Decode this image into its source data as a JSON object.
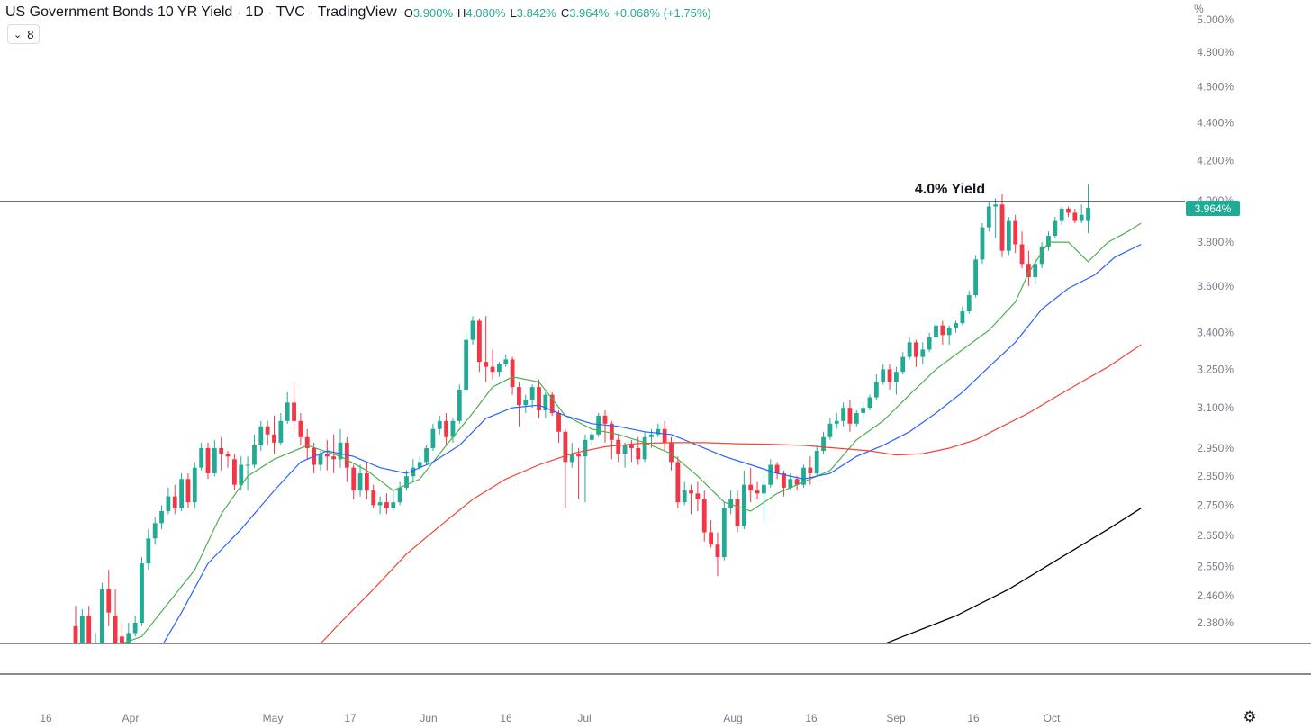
{
  "header": {
    "title": "US Government Bonds 10 YR Yield",
    "interval": "1D",
    "source": "TVC",
    "platform": "TradingView",
    "ohlc": {
      "o_label": "O",
      "o_value": "3.900%",
      "h_label": "H",
      "h_value": "4.080%",
      "l_label": "L",
      "l_value": "3.842%",
      "c_label": "C",
      "c_value": "3.964%",
      "change": "+0.068% (+1.75%)"
    },
    "indicator_count": "8"
  },
  "colors": {
    "up": "#22ab94",
    "down": "#f23645",
    "ma_green": "#4caf50",
    "ma_blue": "#2962ff",
    "ma_red": "#f44336",
    "ma_black": "#000000",
    "price_tag": "#22ab94"
  },
  "chart_data": {
    "type": "candlestick",
    "title": "US Government Bonds 10 YR Yield",
    "y_unit": "%",
    "y_scale": "log",
    "ylim": [
      2.26,
      5.0
    ],
    "y_ticks": [
      "5.000%",
      "4.800%",
      "4.600%",
      "4.400%",
      "4.200%",
      "4.000%",
      "3.800%",
      "3.600%",
      "3.400%",
      "3.250%",
      "3.100%",
      "2.950%",
      "2.850%",
      "2.750%",
      "2.650%",
      "2.550%",
      "2.460%",
      "2.380%"
    ],
    "x_ticks": [
      "16",
      "Apr",
      "May",
      "17",
      "Jun",
      "16",
      "Jul",
      "Aug",
      "16",
      "Sep",
      "16",
      "Oct"
    ],
    "annotation": {
      "text": "4.0% Yield",
      "level": 4.0
    },
    "last_price": {
      "label": "3.964%",
      "value": 3.964
    },
    "candles": [
      [
        2.37,
        2.43,
        2.3,
        2.3
      ],
      [
        2.31,
        2.42,
        2.29,
        2.4
      ],
      [
        2.4,
        2.43,
        2.27,
        2.28
      ],
      [
        2.28,
        2.35,
        2.27,
        2.31
      ],
      [
        2.31,
        2.5,
        2.3,
        2.48
      ],
      [
        2.48,
        2.54,
        2.37,
        2.41
      ],
      [
        2.4,
        2.48,
        2.3,
        2.32
      ],
      [
        2.34,
        2.38,
        2.28,
        2.3
      ],
      [
        2.3,
        2.38,
        2.26,
        2.35
      ],
      [
        2.35,
        2.4,
        2.34,
        2.38
      ],
      [
        2.38,
        2.58,
        2.37,
        2.56
      ],
      [
        2.56,
        2.67,
        2.54,
        2.64
      ],
      [
        2.64,
        2.71,
        2.62,
        2.69
      ],
      [
        2.69,
        2.75,
        2.67,
        2.73
      ],
      [
        2.73,
        2.81,
        2.72,
        2.78
      ],
      [
        2.78,
        2.82,
        2.72,
        2.74
      ],
      [
        2.74,
        2.86,
        2.73,
        2.84
      ],
      [
        2.84,
        2.86,
        2.74,
        2.76
      ],
      [
        2.76,
        2.9,
        2.74,
        2.88
      ],
      [
        2.88,
        2.97,
        2.87,
        2.95
      ],
      [
        2.95,
        2.97,
        2.84,
        2.86
      ],
      [
        2.86,
        2.98,
        2.85,
        2.95
      ],
      [
        2.95,
        2.99,
        2.87,
        2.93
      ],
      [
        2.93,
        2.94,
        2.88,
        2.92
      ],
      [
        2.91,
        2.93,
        2.8,
        2.82
      ],
      [
        2.82,
        2.92,
        2.8,
        2.89
      ],
      [
        2.89,
        2.92,
        2.8,
        2.89
      ],
      [
        2.89,
        3.0,
        2.88,
        2.96
      ],
      [
        2.96,
        3.05,
        2.94,
        3.03
      ],
      [
        3.03,
        3.05,
        2.96,
        3.0
      ],
      [
        3.0,
        3.07,
        2.93,
        2.97
      ],
      [
        2.97,
        3.08,
        2.96,
        3.05
      ],
      [
        3.05,
        3.16,
        3.04,
        3.12
      ],
      [
        3.12,
        3.2,
        3.02,
        3.05
      ],
      [
        3.05,
        3.08,
        2.96,
        2.99
      ],
      [
        2.99,
        3.02,
        2.91,
        2.95
      ],
      [
        2.95,
        2.97,
        2.86,
        2.89
      ],
      [
        2.89,
        2.94,
        2.87,
        2.93
      ],
      [
        2.93,
        2.98,
        2.87,
        2.92
      ],
      [
        2.92,
        3.0,
        2.86,
        2.91
      ],
      [
        2.91,
        3.02,
        2.88,
        2.97
      ],
      [
        2.97,
        2.99,
        2.83,
        2.88
      ],
      [
        2.88,
        2.89,
        2.77,
        2.8
      ],
      [
        2.8,
        2.89,
        2.78,
        2.86
      ],
      [
        2.86,
        2.9,
        2.77,
        2.8
      ],
      [
        2.8,
        2.82,
        2.74,
        2.75
      ],
      [
        2.75,
        2.78,
        2.72,
        2.76
      ],
      [
        2.76,
        2.79,
        2.72,
        2.74
      ],
      [
        2.74,
        2.8,
        2.73,
        2.76
      ],
      [
        2.76,
        2.83,
        2.75,
        2.81
      ],
      [
        2.81,
        2.87,
        2.8,
        2.85
      ],
      [
        2.85,
        2.91,
        2.83,
        2.88
      ],
      [
        2.88,
        2.92,
        2.87,
        2.9
      ],
      [
        2.9,
        2.96,
        2.89,
        2.95
      ],
      [
        2.95,
        3.04,
        2.94,
        3.02
      ],
      [
        3.02,
        3.07,
        3.0,
        3.05
      ],
      [
        3.05,
        3.08,
        2.96,
        2.99
      ],
      [
        2.99,
        3.06,
        2.97,
        3.05
      ],
      [
        3.05,
        3.19,
        3.04,
        3.17
      ],
      [
        3.17,
        3.4,
        3.16,
        3.37
      ],
      [
        3.37,
        3.47,
        3.35,
        3.45
      ],
      [
        3.45,
        3.46,
        3.24,
        3.28
      ],
      [
        3.28,
        3.47,
        3.2,
        3.26
      ],
      [
        3.26,
        3.33,
        3.21,
        3.24
      ],
      [
        3.24,
        3.28,
        3.22,
        3.27
      ],
      [
        3.27,
        3.31,
        3.26,
        3.29
      ],
      [
        3.29,
        3.3,
        3.15,
        3.18
      ],
      [
        3.18,
        3.2,
        3.03,
        3.11
      ],
      [
        3.11,
        3.15,
        3.08,
        3.13
      ],
      [
        3.13,
        3.19,
        3.1,
        3.18
      ],
      [
        3.18,
        3.21,
        3.06,
        3.09
      ],
      [
        3.09,
        3.16,
        3.06,
        3.15
      ],
      [
        3.15,
        3.16,
        3.07,
        3.08
      ],
      [
        3.08,
        3.09,
        2.97,
        3.01
      ],
      [
        3.01,
        3.02,
        2.74,
        2.9
      ],
      [
        2.9,
        2.97,
        2.88,
        2.93
      ],
      [
        2.93,
        2.95,
        2.77,
        2.92
      ],
      [
        2.92,
        3.0,
        2.76,
        2.98
      ],
      [
        2.98,
        3.01,
        2.96,
        3.0
      ],
      [
        3.0,
        3.08,
        2.99,
        3.07
      ],
      [
        3.07,
        3.09,
        2.97,
        3.04
      ],
      [
        3.04,
        3.05,
        2.91,
        2.98
      ],
      [
        2.98,
        3.0,
        2.9,
        2.93
      ],
      [
        2.93,
        2.97,
        2.88,
        2.96
      ],
      [
        2.96,
        2.98,
        2.9,
        2.95
      ],
      [
        2.95,
        2.99,
        2.89,
        2.91
      ],
      [
        2.91,
        3.01,
        2.9,
        2.99
      ],
      [
        2.99,
        3.02,
        2.95,
        3.0
      ],
      [
        3.0,
        3.04,
        2.99,
        3.02
      ],
      [
        3.02,
        3.05,
        2.94,
        2.97
      ],
      [
        2.97,
        2.99,
        2.87,
        2.9
      ],
      [
        2.9,
        2.92,
        2.74,
        2.76
      ],
      [
        2.76,
        2.83,
        2.75,
        2.8
      ],
      [
        2.8,
        2.82,
        2.72,
        2.79
      ],
      [
        2.79,
        2.83,
        2.73,
        2.77
      ],
      [
        2.77,
        2.8,
        2.63,
        2.66
      ],
      [
        2.66,
        2.7,
        2.61,
        2.62
      ],
      [
        2.62,
        2.66,
        2.52,
        2.58
      ],
      [
        2.58,
        2.76,
        2.57,
        2.74
      ],
      [
        2.74,
        2.8,
        2.72,
        2.77
      ],
      [
        2.77,
        2.8,
        2.66,
        2.68
      ],
      [
        2.68,
        2.87,
        2.67,
        2.82
      ],
      [
        2.82,
        2.88,
        2.76,
        2.8
      ],
      [
        2.8,
        2.83,
        2.77,
        2.79
      ],
      [
        2.79,
        2.86,
        2.69,
        2.82
      ],
      [
        2.82,
        2.91,
        2.81,
        2.89
      ],
      [
        2.89,
        2.9,
        2.84,
        2.86
      ],
      [
        2.86,
        2.87,
        2.78,
        2.81
      ],
      [
        2.81,
        2.86,
        2.8,
        2.84
      ],
      [
        2.84,
        2.85,
        2.8,
        2.82
      ],
      [
        2.82,
        2.89,
        2.81,
        2.88
      ],
      [
        2.88,
        2.92,
        2.82,
        2.86
      ],
      [
        2.86,
        2.96,
        2.85,
        2.94
      ],
      [
        2.94,
        3.01,
        2.93,
        2.99
      ],
      [
        2.99,
        3.06,
        2.98,
        3.04
      ],
      [
        3.04,
        3.08,
        3.02,
        3.05
      ],
      [
        3.05,
        3.12,
        3.03,
        3.1
      ],
      [
        3.1,
        3.13,
        3.01,
        3.04
      ],
      [
        3.04,
        3.09,
        3.03,
        3.08
      ],
      [
        3.08,
        3.12,
        3.06,
        3.1
      ],
      [
        3.1,
        3.15,
        3.09,
        3.14
      ],
      [
        3.14,
        3.23,
        3.13,
        3.2
      ],
      [
        3.2,
        3.27,
        3.19,
        3.25
      ],
      [
        3.25,
        3.27,
        3.17,
        3.2
      ],
      [
        3.2,
        3.26,
        3.15,
        3.24
      ],
      [
        3.24,
        3.32,
        3.23,
        3.3
      ],
      [
        3.3,
        3.38,
        3.29,
        3.36
      ],
      [
        3.36,
        3.37,
        3.26,
        3.3
      ],
      [
        3.3,
        3.36,
        3.27,
        3.33
      ],
      [
        3.33,
        3.4,
        3.32,
        3.38
      ],
      [
        3.38,
        3.46,
        3.37,
        3.43
      ],
      [
        3.43,
        3.45,
        3.35,
        3.39
      ],
      [
        3.39,
        3.43,
        3.35,
        3.42
      ],
      [
        3.42,
        3.45,
        3.4,
        3.44
      ],
      [
        3.44,
        3.51,
        3.43,
        3.49
      ],
      [
        3.49,
        3.58,
        3.48,
        3.56
      ],
      [
        3.56,
        3.74,
        3.55,
        3.72
      ],
      [
        3.72,
        3.89,
        3.7,
        3.87
      ],
      [
        3.87,
        3.99,
        3.85,
        3.97
      ],
      [
        3.97,
        4.01,
        3.82,
        3.98
      ],
      [
        3.98,
        4.03,
        3.73,
        3.76
      ],
      [
        3.76,
        3.92,
        3.74,
        3.9
      ],
      [
        3.9,
        3.93,
        3.75,
        3.79
      ],
      [
        3.79,
        3.85,
        3.68,
        3.7
      ],
      [
        3.7,
        3.76,
        3.6,
        3.64
      ],
      [
        3.64,
        3.73,
        3.61,
        3.7
      ],
      [
        3.7,
        3.8,
        3.68,
        3.78
      ],
      [
        3.78,
        3.85,
        3.76,
        3.83
      ],
      [
        3.83,
        3.92,
        3.82,
        3.9
      ],
      [
        3.9,
        3.97,
        3.88,
        3.96
      ],
      [
        3.96,
        3.97,
        3.92,
        3.94
      ],
      [
        3.94,
        3.96,
        3.89,
        3.9
      ],
      [
        3.9,
        3.98,
        3.89,
        3.93
      ],
      [
        3.9,
        4.08,
        3.842,
        3.964
      ]
    ],
    "series": [
      {
        "type": "moving-average",
        "color": "#4caf50",
        "points": [
          [
            1,
            2.28
          ],
          [
            10,
            2.34
          ],
          [
            18,
            2.54
          ],
          [
            22,
            2.72
          ],
          [
            26,
            2.85
          ],
          [
            30,
            2.91
          ],
          [
            35,
            2.96
          ],
          [
            40,
            2.92
          ],
          [
            44,
            2.87
          ],
          [
            48,
            2.8
          ],
          [
            52,
            2.84
          ],
          [
            56,
            2.96
          ],
          [
            60,
            3.08
          ],
          [
            63,
            3.18
          ],
          [
            66,
            3.22
          ],
          [
            70,
            3.2
          ],
          [
            74,
            3.07
          ],
          [
            78,
            3.02
          ],
          [
            82,
            3.0
          ],
          [
            86,
            2.97
          ],
          [
            90,
            2.93
          ],
          [
            94,
            2.85
          ],
          [
            98,
            2.76
          ],
          [
            102,
            2.73
          ],
          [
            106,
            2.79
          ],
          [
            110,
            2.83
          ],
          [
            114,
            2.87
          ],
          [
            118,
            2.98
          ],
          [
            122,
            3.05
          ],
          [
            126,
            3.15
          ],
          [
            130,
            3.25
          ],
          [
            134,
            3.33
          ],
          [
            138,
            3.41
          ],
          [
            142,
            3.53
          ],
          [
            144,
            3.66
          ],
          [
            147,
            3.8
          ],
          [
            150,
            3.8
          ],
          [
            153,
            3.71
          ],
          [
            156,
            3.8
          ],
          [
            159,
            3.85
          ],
          [
            161,
            3.89
          ]
        ]
      },
      {
        "type": "moving-average",
        "color": "#2962ff",
        "points": [
          [
            12,
            2.28
          ],
          [
            16,
            2.41
          ],
          [
            20,
            2.56
          ],
          [
            25,
            2.67
          ],
          [
            30,
            2.8
          ],
          [
            34,
            2.9
          ],
          [
            38,
            2.94
          ],
          [
            42,
            2.92
          ],
          [
            46,
            2.88
          ],
          [
            50,
            2.86
          ],
          [
            54,
            2.9
          ],
          [
            58,
            2.96
          ],
          [
            62,
            3.06
          ],
          [
            66,
            3.1
          ],
          [
            70,
            3.11
          ],
          [
            74,
            3.07
          ],
          [
            78,
            3.04
          ],
          [
            82,
            3.03
          ],
          [
            86,
            3.01
          ],
          [
            90,
            3.0
          ],
          [
            94,
            2.96
          ],
          [
            98,
            2.92
          ],
          [
            102,
            2.89
          ],
          [
            106,
            2.86
          ],
          [
            110,
            2.84
          ],
          [
            114,
            2.86
          ],
          [
            118,
            2.92
          ],
          [
            122,
            2.96
          ],
          [
            126,
            3.01
          ],
          [
            130,
            3.08
          ],
          [
            134,
            3.16
          ],
          [
            138,
            3.26
          ],
          [
            142,
            3.36
          ],
          [
            146,
            3.5
          ],
          [
            150,
            3.59
          ],
          [
            154,
            3.65
          ],
          [
            157,
            3.73
          ],
          [
            161,
            3.79
          ]
        ]
      },
      {
        "type": "moving-average",
        "color": "#f44336",
        "points": [
          [
            35,
            2.28
          ],
          [
            40,
            2.38
          ],
          [
            45,
            2.48
          ],
          [
            50,
            2.59
          ],
          [
            55,
            2.68
          ],
          [
            60,
            2.77
          ],
          [
            65,
            2.84
          ],
          [
            70,
            2.89
          ],
          [
            75,
            2.93
          ],
          [
            80,
            2.955
          ],
          [
            85,
            2.967
          ],
          [
            90,
            2.97
          ],
          [
            95,
            2.97
          ],
          [
            100,
            2.966
          ],
          [
            105,
            2.964
          ],
          [
            110,
            2.96
          ],
          [
            115,
            2.95
          ],
          [
            120,
            2.94
          ],
          [
            124,
            2.925
          ],
          [
            128,
            2.93
          ],
          [
            132,
            2.95
          ],
          [
            136,
            2.98
          ],
          [
            140,
            3.03
          ],
          [
            144,
            3.08
          ],
          [
            148,
            3.14
          ],
          [
            152,
            3.2
          ],
          [
            156,
            3.26
          ],
          [
            161,
            3.35
          ]
        ]
      },
      {
        "type": "moving-average",
        "color": "#000000",
        "points": [
          [
            117,
            2.28
          ],
          [
            125,
            2.34
          ],
          [
            133,
            2.4
          ],
          [
            141,
            2.48
          ],
          [
            149,
            2.58
          ],
          [
            156,
            2.67
          ],
          [
            161,
            2.74
          ]
        ]
      }
    ]
  }
}
